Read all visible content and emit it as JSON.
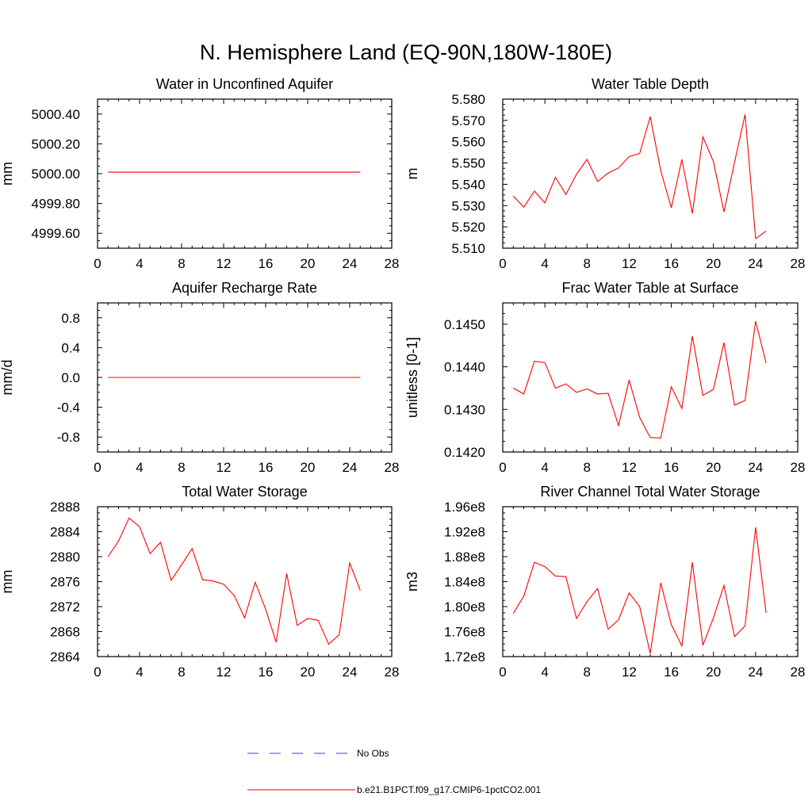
{
  "title": "N. Hemisphere Land (EQ-90N,180W-180E)",
  "colors": {
    "model": "#ff0000",
    "obs": "#3b3bff",
    "axis": "#000000"
  },
  "legend": {
    "obs_label": "No Obs",
    "model_label": "b.e21.B1PCT.f09_g17.CMIP6-1pctCO2.001"
  },
  "chart_data": [
    {
      "type": "line",
      "title": "Water in Unconfined Aquifer",
      "xlabel": "",
      "ylabel": "mm",
      "xlim": [
        0,
        28
      ],
      "xticks": [
        "0",
        "4",
        "8",
        "12",
        "16",
        "20",
        "24",
        "28"
      ],
      "ylim": [
        4999.5,
        5000.5
      ],
      "yticks": [
        "4999.60",
        "4999.80",
        "5000.00",
        "5000.20",
        "5000.40"
      ],
      "x": [
        1,
        2,
        3,
        4,
        5,
        6,
        7,
        8,
        9,
        10,
        11,
        12,
        13,
        14,
        15,
        16,
        17,
        18,
        19,
        20,
        21,
        22,
        23,
        24,
        25
      ],
      "series": [
        {
          "values": [
            5000.01,
            5000.01,
            5000.01,
            5000.01,
            5000.01,
            5000.01,
            5000.01,
            5000.01,
            5000.01,
            5000.01,
            5000.01,
            5000.01,
            5000.01,
            5000.01,
            5000.01,
            5000.01,
            5000.01,
            5000.01,
            5000.01,
            5000.01,
            5000.01,
            5000.01,
            5000.01,
            5000.01,
            5000.01
          ]
        }
      ]
    },
    {
      "type": "line",
      "title": "Water Table Depth",
      "xlabel": "",
      "ylabel": "m",
      "xlim": [
        0,
        28
      ],
      "xticks": [
        "0",
        "4",
        "8",
        "12",
        "16",
        "20",
        "24",
        "28"
      ],
      "ylim": [
        5.51,
        5.58
      ],
      "yticks": [
        "5.510",
        "5.520",
        "5.530",
        "5.540",
        "5.550",
        "5.560",
        "5.570",
        "5.580"
      ],
      "x": [
        1,
        2,
        3,
        4,
        5,
        6,
        7,
        8,
        9,
        10,
        11,
        12,
        13,
        14,
        15,
        16,
        17,
        18,
        19,
        20,
        21,
        22,
        23,
        24,
        25
      ],
      "series": [
        {
          "values": [
            5.5345,
            5.5293,
            5.5368,
            5.5313,
            5.5433,
            5.5352,
            5.5447,
            5.5517,
            5.5413,
            5.5453,
            5.5477,
            5.553,
            5.5545,
            5.5718,
            5.5463,
            5.529,
            5.5517,
            5.5263,
            5.5623,
            5.5507,
            5.527,
            5.5503,
            5.5728,
            5.5145,
            5.518
          ]
        }
      ]
    },
    {
      "type": "line",
      "title": "Aquifer Recharge Rate",
      "xlabel": "",
      "ylabel": "mm/d",
      "xlim": [
        0,
        28
      ],
      "xticks": [
        "0",
        "4",
        "8",
        "12",
        "16",
        "20",
        "24",
        "28"
      ],
      "ylim": [
        -1.0,
        1.0
      ],
      "yticks": [
        "-0.8",
        "-0.4",
        "0.0",
        "0.4",
        "0.8"
      ],
      "x": [
        1,
        2,
        3,
        4,
        5,
        6,
        7,
        8,
        9,
        10,
        11,
        12,
        13,
        14,
        15,
        16,
        17,
        18,
        19,
        20,
        21,
        22,
        23,
        24,
        25
      ],
      "series": [
        {
          "values": [
            0,
            0,
            0,
            0,
            0,
            0,
            0,
            0,
            0,
            0,
            0,
            0,
            0,
            0,
            0,
            0,
            0,
            0,
            0,
            0,
            0,
            0,
            0,
            0,
            0
          ]
        }
      ]
    },
    {
      "type": "line",
      "title": "Frac Water Table at Surface",
      "xlabel": "",
      "ylabel": "unitless [0-1]",
      "xlim": [
        0,
        28
      ],
      "xticks": [
        "0",
        "4",
        "8",
        "12",
        "16",
        "20",
        "24",
        "28"
      ],
      "ylim": [
        0.142,
        0.1455
      ],
      "yticks": [
        "0.1420",
        "0.1430",
        "0.1440",
        "0.1450"
      ],
      "x": [
        1,
        2,
        3,
        4,
        5,
        6,
        7,
        8,
        9,
        10,
        11,
        12,
        13,
        14,
        15,
        16,
        17,
        18,
        19,
        20,
        21,
        22,
        23,
        24,
        25
      ],
      "series": [
        {
          "values": [
            0.1435,
            0.14336,
            0.14413,
            0.1441,
            0.1435,
            0.1436,
            0.1434,
            0.14348,
            0.14336,
            0.14338,
            0.14262,
            0.14369,
            0.14281,
            0.14234,
            0.14233,
            0.14353,
            0.14302,
            0.14472,
            0.14333,
            0.14347,
            0.14457,
            0.1431,
            0.14321,
            0.14507,
            0.14409
          ]
        }
      ]
    },
    {
      "type": "line",
      "title": "Total Water Storage",
      "xlabel": "",
      "ylabel": "mm",
      "xlim": [
        0,
        28
      ],
      "xticks": [
        "0",
        "4",
        "8",
        "12",
        "16",
        "20",
        "24",
        "28"
      ],
      "ylim": [
        2864,
        2888
      ],
      "yticks": [
        "2864",
        "2868",
        "2872",
        "2876",
        "2880",
        "2884",
        "2888"
      ],
      "x": [
        1,
        2,
        3,
        4,
        5,
        6,
        7,
        8,
        9,
        10,
        11,
        12,
        13,
        14,
        15,
        16,
        17,
        18,
        19,
        20,
        21,
        22,
        23,
        24,
        25
      ],
      "series": [
        {
          "values": [
            2880.0,
            2882.5,
            2886.2,
            2884.8,
            2880.5,
            2882.3,
            2876.2,
            2878.7,
            2881.3,
            2876.3,
            2876.1,
            2875.6,
            2873.8,
            2870.2,
            2875.9,
            2871.6,
            2866.3,
            2877.3,
            2869.0,
            2870.1,
            2869.8,
            2866.0,
            2867.5,
            2879.0,
            2874.6
          ]
        }
      ]
    },
    {
      "type": "line",
      "title": "River Channel Total Water Storage",
      "xlabel": "",
      "ylabel": "m3",
      "xlim": [
        0,
        28
      ],
      "xticks": [
        "0",
        "4",
        "8",
        "12",
        "16",
        "20",
        "24",
        "28"
      ],
      "ylim": [
        172000000.0,
        196000000.0
      ],
      "yticks": [
        "1.72e8",
        "1.76e8",
        "1.80e8",
        "1.84e8",
        "1.88e8",
        "1.92e8",
        "1.96e8"
      ],
      "x": [
        1,
        2,
        3,
        4,
        5,
        6,
        7,
        8,
        9,
        10,
        11,
        12,
        13,
        14,
        15,
        16,
        17,
        18,
        19,
        20,
        21,
        22,
        23,
        24,
        25
      ],
      "series": [
        {
          "values": [
            178900000.0,
            181700000.0,
            187100000.0,
            186400000.0,
            184900000.0,
            184800000.0,
            178100000.0,
            180800000.0,
            182900000.0,
            176400000.0,
            177900000.0,
            182200000.0,
            180000000.0,
            172500000.0,
            183800000.0,
            177100000.0,
            173700000.0,
            187100000.0,
            173800000.0,
            178200000.0,
            183400000.0,
            175200000.0,
            176900000.0,
            192700000.0,
            179000000.0
          ]
        }
      ]
    }
  ]
}
